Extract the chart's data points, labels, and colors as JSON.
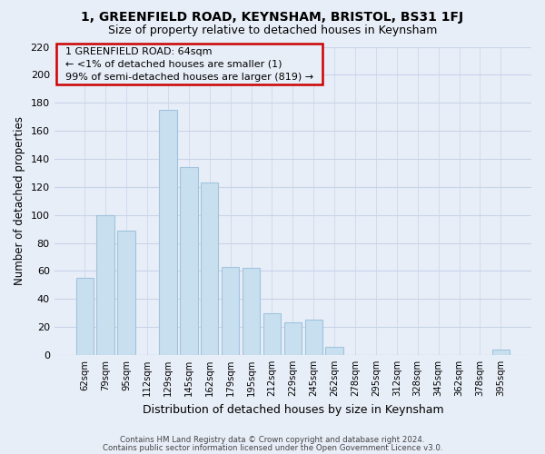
{
  "title_line1": "1, GREENFIELD ROAD, KEYNSHAM, BRISTOL, BS31 1FJ",
  "title_line2": "Size of property relative to detached houses in Keynsham",
  "xlabel": "Distribution of detached houses by size in Keynsham",
  "ylabel": "Number of detached properties",
  "bar_labels": [
    "62sqm",
    "79sqm",
    "95sqm",
    "112sqm",
    "129sqm",
    "145sqm",
    "162sqm",
    "179sqm",
    "195sqm",
    "212sqm",
    "229sqm",
    "245sqm",
    "262sqm",
    "278sqm",
    "295sqm",
    "312sqm",
    "328sqm",
    "345sqm",
    "362sqm",
    "378sqm",
    "395sqm"
  ],
  "bar_values": [
    55,
    100,
    89,
    0,
    175,
    134,
    123,
    63,
    62,
    30,
    23,
    25,
    6,
    0,
    0,
    0,
    0,
    0,
    0,
    0,
    4
  ],
  "bar_color": "#c8dff0",
  "bar_edge_color": "#a0c4dc",
  "highlight_edge_color": "#cc0000",
  "ylim": [
    0,
    220
  ],
  "yticks": [
    0,
    20,
    40,
    60,
    80,
    100,
    120,
    140,
    160,
    180,
    200,
    220
  ],
  "annotation_title": "1 GREENFIELD ROAD: 64sqm",
  "annotation_line1": "← <1% of detached houses are smaller (1)",
  "annotation_line2": "99% of semi-detached houses are larger (819) →",
  "annotation_box_edge": "#cc0000",
  "footer_line1": "Contains HM Land Registry data © Crown copyright and database right 2024.",
  "footer_line2": "Contains public sector information licensed under the Open Government Licence v3.0.",
  "background_color": "#e8eef8",
  "grid_color": "#c8d4e8"
}
